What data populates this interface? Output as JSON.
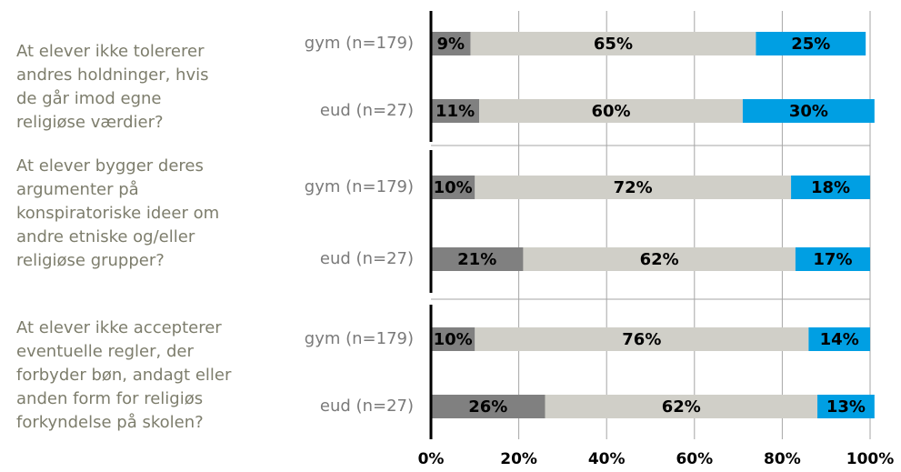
{
  "chart_data": {
    "type": "stacked-bar",
    "groups": [
      {
        "label": [
          "At elever ikke tolererer",
          "andres holdninger, hvis",
          "de går imod egne",
          "religiøse værdier?"
        ],
        "categories": [
          "gym (n=179)",
          "eud (n=27)"
        ]
      },
      {
        "label": [
          "At elever bygger deres",
          "argumenter på",
          "konspiratoriske ideer om",
          "andre etniske og/eller",
          "religiøse grupper?"
        ],
        "categories": [
          "gym (n=179)",
          "eud (n=27)"
        ]
      },
      {
        "label": [
          "At elever ikke accepterer",
          "eventuelle regler, der",
          "forbyder bøn, andagt eller",
          "anden form for religiøs",
          "forkyndelse på skolen?"
        ],
        "categories": [
          "gym (n=179)",
          "eud (n=27)"
        ]
      }
    ],
    "series": [
      {
        "color": "#808080",
        "values": [
          9,
          11,
          10,
          21,
          10,
          26
        ],
        "value_labels": [
          "9%",
          "11%",
          "10%",
          "21%",
          "10%",
          "26%"
        ]
      },
      {
        "color": "#d0cfc8",
        "values": [
          65,
          60,
          72,
          62,
          76,
          62
        ],
        "value_labels": [
          "65%",
          "60%",
          "72%",
          "62%",
          "76%",
          "62%"
        ]
      },
      {
        "color": "#009fe3",
        "values": [
          25,
          30,
          18,
          17,
          14,
          13
        ],
        "value_labels": [
          "25%",
          "30%",
          "18%",
          "17%",
          "14%",
          "13%"
        ]
      }
    ],
    "xlim": [
      0,
      100
    ],
    "xticks": [
      {
        "value": 0,
        "label": "0%"
      },
      {
        "value": 20,
        "label": "20%"
      },
      {
        "value": 40,
        "label": "40%"
      },
      {
        "value": 60,
        "label": "60%"
      },
      {
        "value": 80,
        "label": "80%"
      },
      {
        "value": 100,
        "label": "100%"
      }
    ],
    "grid": true
  }
}
